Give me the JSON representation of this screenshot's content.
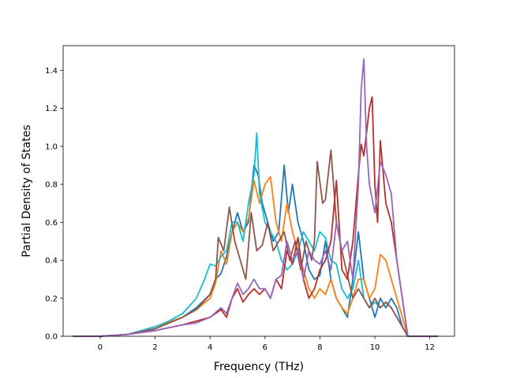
{
  "chart_data": {
    "type": "line",
    "title": "",
    "xlabel": "Frequency (THz)",
    "ylabel": "Partial Density of States",
    "xlim": [
      -1.35,
      12.9
    ],
    "ylim": [
      0,
      1.53
    ],
    "xticks": [
      0,
      2,
      4,
      6,
      8,
      10,
      12
    ],
    "yticks": [
      0.0,
      0.2,
      0.4,
      0.6,
      0.8,
      1.0,
      1.2,
      1.4
    ],
    "ytick_labels": [
      "0.0",
      "0.2",
      "0.4",
      "0.6",
      "0.8",
      "1.0",
      "1.2",
      "1.4"
    ],
    "grid": false,
    "legend": "none",
    "series": [
      {
        "color": "#1f77b4",
        "x": [
          -1.0,
          0.0,
          1.0,
          2.0,
          3.0,
          3.5,
          4.0,
          4.2,
          4.4,
          4.6,
          4.8,
          5.0,
          5.2,
          5.4,
          5.6,
          5.75,
          5.9,
          6.1,
          6.3,
          6.5,
          6.7,
          6.85,
          7.0,
          7.2,
          7.4,
          7.6,
          7.8,
          8.0,
          8.2,
          8.4,
          8.6,
          8.8,
          9.0,
          9.2,
          9.4,
          9.6,
          9.8,
          10.0,
          10.2,
          10.4,
          10.6,
          10.8,
          11.0,
          11.2,
          12.3
        ],
        "y": [
          0.0,
          0.0,
          0.01,
          0.04,
          0.1,
          0.15,
          0.22,
          0.3,
          0.33,
          0.42,
          0.55,
          0.65,
          0.55,
          0.6,
          0.9,
          0.85,
          0.7,
          0.6,
          0.5,
          0.55,
          0.9,
          0.65,
          0.8,
          0.6,
          0.5,
          0.35,
          0.3,
          0.32,
          0.5,
          0.3,
          0.2,
          0.15,
          0.1,
          0.3,
          0.55,
          0.3,
          0.2,
          0.1,
          0.2,
          0.15,
          0.2,
          0.15,
          0.05,
          0.0,
          0.0
        ]
      },
      {
        "color": "#ff7f0e",
        "x": [
          -1.0,
          0.0,
          1.0,
          2.0,
          3.0,
          3.5,
          4.0,
          4.2,
          4.4,
          4.6,
          4.8,
          5.0,
          5.2,
          5.4,
          5.6,
          5.8,
          6.0,
          6.2,
          6.4,
          6.6,
          6.8,
          7.0,
          7.2,
          7.4,
          7.6,
          7.8,
          8.0,
          8.2,
          8.4,
          8.6,
          8.8,
          9.0,
          9.2,
          9.4,
          9.6,
          9.8,
          10.0,
          10.2,
          10.4,
          10.6,
          10.8,
          11.0,
          11.2,
          12.3
        ],
        "y": [
          0.0,
          0.0,
          0.01,
          0.05,
          0.1,
          0.14,
          0.2,
          0.28,
          0.45,
          0.38,
          0.55,
          0.6,
          0.55,
          0.62,
          0.82,
          0.7,
          0.8,
          0.84,
          0.6,
          0.5,
          0.7,
          0.55,
          0.45,
          0.35,
          0.25,
          0.2,
          0.25,
          0.22,
          0.3,
          0.2,
          0.15,
          0.12,
          0.2,
          0.3,
          0.3,
          0.2,
          0.25,
          0.43,
          0.4,
          0.3,
          0.2,
          0.1,
          0.0,
          0.0
        ]
      },
      {
        "color": "#17becf",
        "x": [
          -1.0,
          0.0,
          1.0,
          2.0,
          2.5,
          3.0,
          3.5,
          3.8,
          4.0,
          4.2,
          4.4,
          4.6,
          4.8,
          5.0,
          5.2,
          5.4,
          5.6,
          5.7,
          5.8,
          6.0,
          6.2,
          6.4,
          6.6,
          6.8,
          7.0,
          7.2,
          7.4,
          7.6,
          7.8,
          8.0,
          8.2,
          8.4,
          8.6,
          8.8,
          9.0,
          9.2,
          9.4,
          9.6,
          9.8,
          10.0,
          10.2,
          10.4,
          10.6,
          10.8,
          11.0,
          11.2,
          12.3
        ],
        "y": [
          0.0,
          0.0,
          0.01,
          0.05,
          0.08,
          0.12,
          0.2,
          0.3,
          0.38,
          0.37,
          0.42,
          0.45,
          0.6,
          0.6,
          0.5,
          0.7,
          0.85,
          1.07,
          0.75,
          0.6,
          0.55,
          0.5,
          0.4,
          0.35,
          0.38,
          0.45,
          0.55,
          0.5,
          0.45,
          0.55,
          0.52,
          0.4,
          0.38,
          0.25,
          0.2,
          0.25,
          0.4,
          0.2,
          0.15,
          0.18,
          0.15,
          0.18,
          0.15,
          0.1,
          0.05,
          0.0,
          0.0
        ]
      },
      {
        "color": "#8c564b",
        "x": [
          -1.0,
          0.0,
          1.0,
          2.0,
          3.0,
          3.5,
          4.0,
          4.2,
          4.3,
          4.5,
          4.7,
          4.9,
          5.1,
          5.3,
          5.5,
          5.7,
          5.9,
          6.1,
          6.3,
          6.5,
          6.7,
          6.9,
          7.1,
          7.3,
          7.5,
          7.7,
          7.8,
          7.9,
          8.1,
          8.2,
          8.4,
          8.6,
          8.8,
          9.0,
          9.2,
          9.4,
          9.6,
          9.8,
          10.0,
          10.2,
          10.4,
          10.6,
          10.8,
          11.0,
          11.2,
          12.3
        ],
        "y": [
          0.0,
          0.0,
          0.01,
          0.04,
          0.1,
          0.14,
          0.22,
          0.3,
          0.52,
          0.45,
          0.68,
          0.5,
          0.4,
          0.3,
          0.65,
          0.45,
          0.48,
          0.6,
          0.45,
          0.5,
          0.55,
          0.4,
          0.5,
          0.35,
          0.5,
          0.4,
          0.5,
          0.92,
          0.7,
          0.72,
          0.98,
          0.6,
          0.45,
          0.32,
          0.2,
          0.25,
          0.2,
          0.15,
          0.2,
          0.15,
          0.18,
          0.15,
          0.1,
          0.05,
          0.0,
          0.0
        ]
      },
      {
        "color": "#bd2c26",
        "x": [
          -1.0,
          0.0,
          1.0,
          2.0,
          3.0,
          3.5,
          4.0,
          4.4,
          4.6,
          4.8,
          5.0,
          5.2,
          5.4,
          5.6,
          5.8,
          6.0,
          6.2,
          6.4,
          6.6,
          6.8,
          7.0,
          7.2,
          7.4,
          7.6,
          7.8,
          8.0,
          8.2,
          8.4,
          8.6,
          8.8,
          9.0,
          9.2,
          9.4,
          9.5,
          9.6,
          9.8,
          9.9,
          10.0,
          10.1,
          10.2,
          10.4,
          10.6,
          10.8,
          11.0,
          11.2,
          12.3
        ],
        "y": [
          0.0,
          0.0,
          0.01,
          0.03,
          0.06,
          0.08,
          0.1,
          0.14,
          0.1,
          0.2,
          0.25,
          0.18,
          0.22,
          0.25,
          0.22,
          0.25,
          0.2,
          0.3,
          0.25,
          0.45,
          0.38,
          0.52,
          0.3,
          0.2,
          0.25,
          0.35,
          0.4,
          0.5,
          0.82,
          0.35,
          0.3,
          0.5,
          0.85,
          1.01,
          0.95,
          1.2,
          1.26,
          0.8,
          0.6,
          1.03,
          0.7,
          0.6,
          0.4,
          0.2,
          0.0,
          0.0
        ]
      },
      {
        "color": "#9467bd",
        "x": [
          -1.0,
          0.0,
          1.0,
          2.0,
          3.0,
          3.5,
          4.0,
          4.4,
          4.6,
          4.8,
          5.0,
          5.2,
          5.4,
          5.6,
          5.8,
          6.0,
          6.2,
          6.4,
          6.6,
          6.8,
          7.0,
          7.2,
          7.4,
          7.6,
          7.8,
          8.0,
          8.2,
          8.4,
          8.6,
          8.8,
          9.0,
          9.2,
          9.4,
          9.5,
          9.6,
          9.7,
          9.8,
          10.0,
          10.2,
          10.4,
          10.6,
          10.8,
          11.0,
          11.2,
          12.3
        ],
        "y": [
          0.0,
          0.0,
          0.01,
          0.03,
          0.06,
          0.07,
          0.1,
          0.15,
          0.12,
          0.2,
          0.28,
          0.22,
          0.25,
          0.3,
          0.25,
          0.25,
          0.2,
          0.3,
          0.32,
          0.5,
          0.4,
          0.45,
          0.3,
          0.45,
          0.4,
          0.38,
          0.45,
          0.35,
          0.6,
          0.45,
          0.5,
          0.3,
          0.8,
          1.3,
          1.46,
          1.0,
          0.8,
          0.65,
          0.92,
          0.85,
          0.75,
          0.4,
          0.2,
          0.0,
          0.0
        ]
      }
    ]
  }
}
